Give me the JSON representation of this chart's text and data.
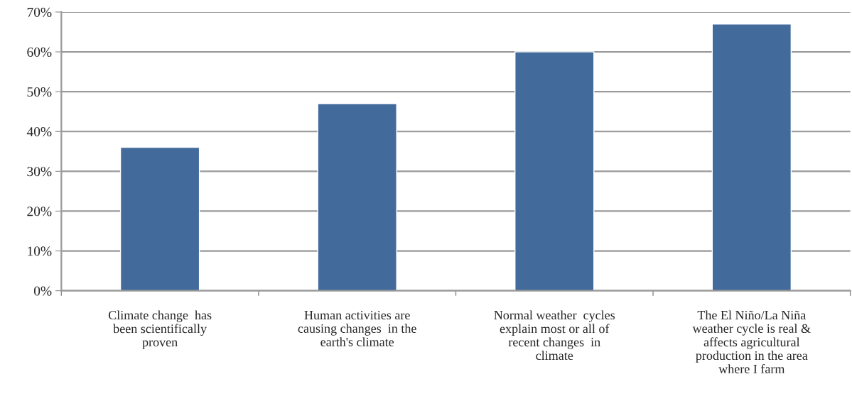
{
  "chart_data": {
    "type": "bar",
    "categories": [
      "Climate change  has\nbeen scientifically\nproven",
      "Human activities are\ncausing changes  in the\nearth's climate",
      "Normal weather  cycles\nexplain most or all of\nrecent changes  in\nclimate",
      "The El Niño/La Niña\nweather cycle is real &\naffects agricultural\nproduction in the area\nwhere I farm"
    ],
    "values": [
      36,
      47,
      60,
      67
    ],
    "color": "#426b9c",
    "ylim": [
      0,
      70
    ],
    "yticks": [
      {
        "value": 0,
        "label": "0%"
      },
      {
        "value": 10,
        "label": "10%"
      },
      {
        "value": 20,
        "label": "20%"
      },
      {
        "value": 30,
        "label": "30%"
      },
      {
        "value": 40,
        "label": "40%"
      },
      {
        "value": 50,
        "label": "50%"
      },
      {
        "value": 60,
        "label": "60%"
      },
      {
        "value": 70,
        "label": "70%"
      }
    ],
    "grid": "y"
  }
}
